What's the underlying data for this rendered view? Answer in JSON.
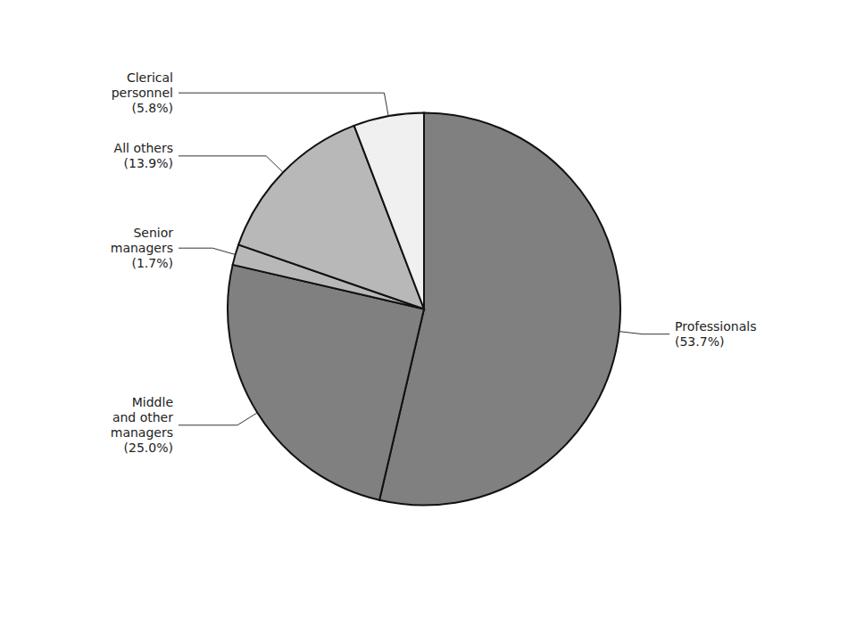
{
  "chart_data": {
    "type": "pie",
    "categories": [
      "Professionals",
      "Middle\nand other\nmanagers",
      "Senior\nmanagers",
      "All others",
      "Clerical\npersonnel"
    ],
    "values": [
      53.7,
      25.0,
      1.7,
      13.9,
      5.8
    ],
    "value_labels": [
      "(53.7%)",
      "(25.0%)",
      "(1.7%)",
      "(13.9%)",
      "(5.8%)"
    ],
    "colors": [
      "#808080",
      "#808080",
      "#b8b8b8",
      "#b8b8b8",
      "#f0f0f0"
    ],
    "data_labels": true
  }
}
